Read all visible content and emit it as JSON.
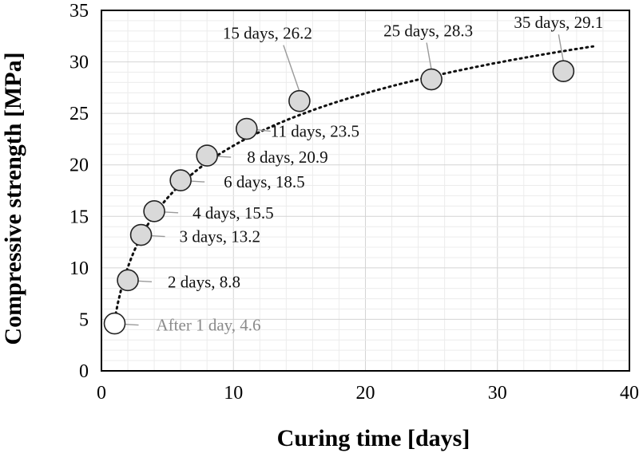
{
  "chart_data": {
    "type": "scatter",
    "xlabel": "Curing time [days]",
    "ylabel": "Compressive strength [MPa]",
    "xlim": [
      0,
      40
    ],
    "ylim": [
      0,
      35
    ],
    "x_ticks": [
      0,
      10,
      20,
      30,
      40
    ],
    "y_ticks": [
      0,
      5,
      10,
      15,
      20,
      25,
      30,
      35
    ],
    "grid": true,
    "trendline": "logarithmic, dotted",
    "points": [
      {
        "x": 1,
        "y": 4.6,
        "label": "After 1 day, 4.6",
        "fill": "#ffffff"
      },
      {
        "x": 2,
        "y": 8.8,
        "label": "2 days, 8.8",
        "fill": "#d9d9d9"
      },
      {
        "x": 3,
        "y": 13.2,
        "label": "3 days, 13.2",
        "fill": "#d9d9d9"
      },
      {
        "x": 4,
        "y": 15.5,
        "label": "4 days, 15.5",
        "fill": "#d9d9d9"
      },
      {
        "x": 6,
        "y": 18.5,
        "label": "6 days, 18.5",
        "fill": "#d9d9d9"
      },
      {
        "x": 8,
        "y": 20.9,
        "label": "8 days, 20.9",
        "fill": "#d9d9d9"
      },
      {
        "x": 11,
        "y": 23.5,
        "label": "11 days, 23.5",
        "fill": "#d9d9d9"
      },
      {
        "x": 15,
        "y": 26.2,
        "label": "15 days, 26.2",
        "fill": "#d9d9d9"
      },
      {
        "x": 25,
        "y": 28.3,
        "label": "25 days, 28.3",
        "fill": "#d9d9d9"
      },
      {
        "x": 35,
        "y": 29.1,
        "label": "35 days, 29.1",
        "fill": "#d9d9d9"
      }
    ]
  }
}
